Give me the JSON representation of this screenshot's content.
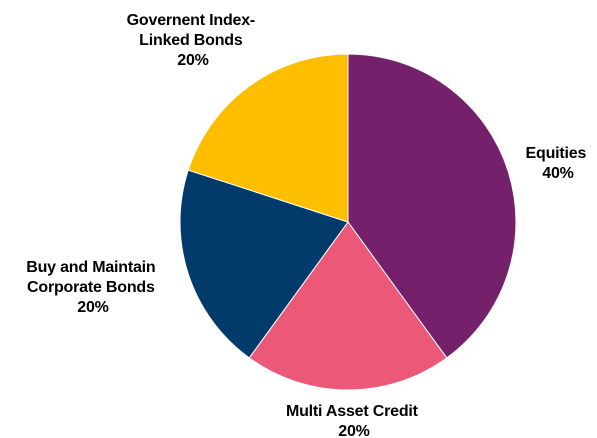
{
  "chart_data": {
    "type": "pie",
    "slices": [
      {
        "label": "Equities",
        "value": 40,
        "pct_label": "40%",
        "color": "#74206B"
      },
      {
        "label": "Multi Asset Credit",
        "value": 20,
        "pct_label": "20%",
        "color": "#EC5877"
      },
      {
        "label": "Buy and Maintain Corporate Bonds",
        "value": 20,
        "pct_label": "20%",
        "color": "#013B6B"
      },
      {
        "label": "Government Index-Linked Bonds",
        "value": 20,
        "pct_label": "20%",
        "color": "#FDBE00"
      }
    ],
    "start_angle_deg": 0,
    "direction": "clockwise",
    "legend": "none"
  },
  "labels": {
    "equities": {
      "lines": [
        "Equities"
      ],
      "pct": "40%"
    },
    "mac": {
      "lines": [
        "Multi Asset Credit"
      ],
      "pct": "20%"
    },
    "bam": {
      "lines": [
        "Buy and Maintain",
        "Corporate Bonds"
      ],
      "pct": "20%"
    },
    "gilb": {
      "lines": [
        "Governent Index-",
        "Linked Bonds"
      ],
      "pct": "20%"
    }
  }
}
